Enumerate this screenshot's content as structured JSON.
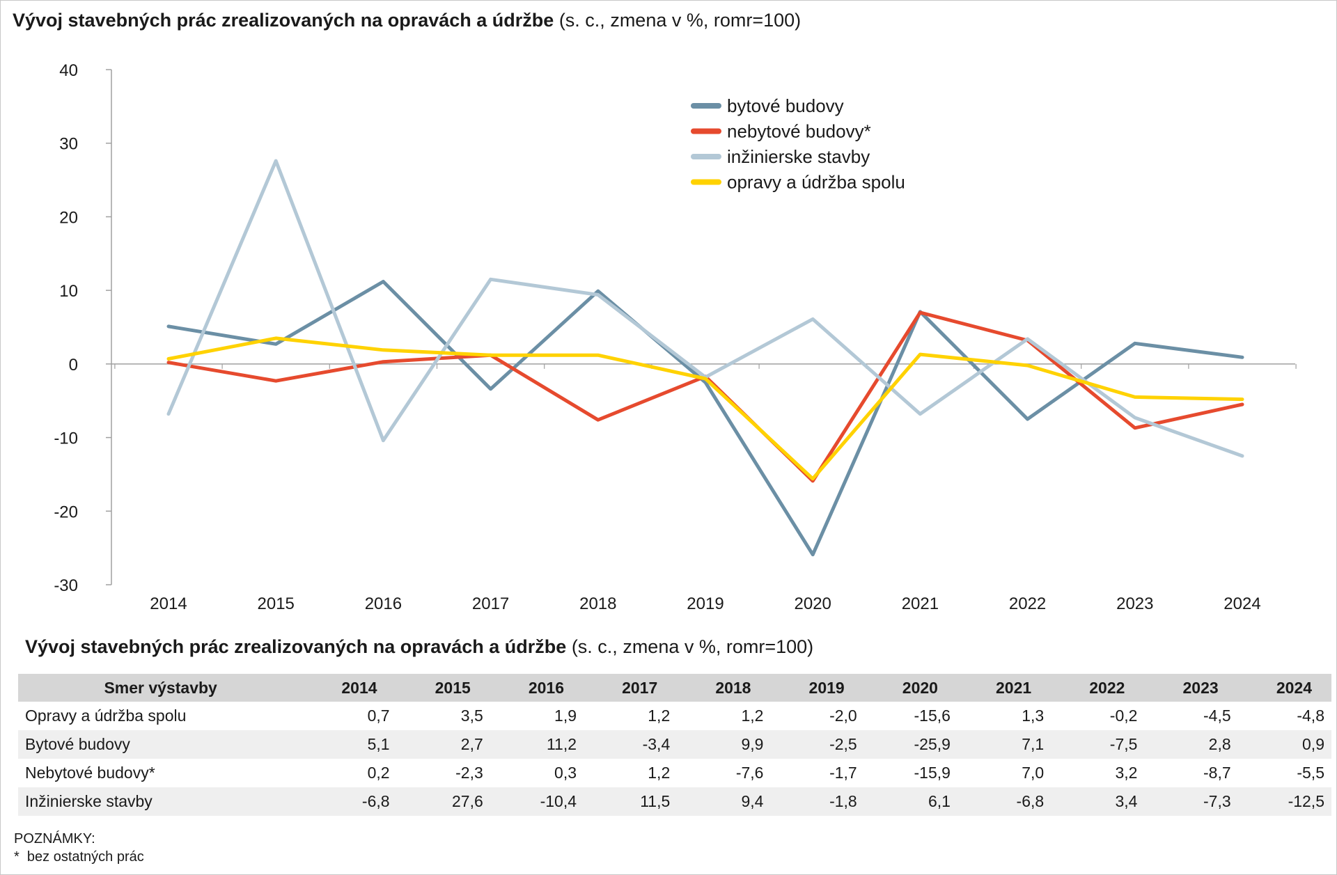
{
  "chart_title_bold": "Vývoj stavebných prác zrealizovaných na opravách a údržbe",
  "chart_title_rest": " (s. c., zmena v %, romr=100)",
  "table_title_bold": "Vývoj stavebných prác zrealizovaných na opravách a údržbe",
  "table_title_rest": " (s. c., zmena v %, romr=100)",
  "chart_data": {
    "type": "line",
    "title": "Vývoj stavebných prác zrealizovaných na opravách a údržbe (s. c., zmena v %, romr=100)",
    "xlabel": "",
    "ylabel": "",
    "categories": [
      "2014",
      "2015",
      "2016",
      "2017",
      "2018",
      "2019",
      "2020",
      "2021",
      "2022",
      "2023",
      "2024"
    ],
    "ylim": [
      -30,
      40
    ],
    "yticks": [
      40,
      30,
      20,
      10,
      0,
      -10,
      -20,
      -30
    ],
    "legend_position": "top-right",
    "series": [
      {
        "name": "bytové budovy",
        "color": "#6b8fa5",
        "values": [
          5.1,
          2.7,
          11.2,
          -3.4,
          9.9,
          -2.5,
          -25.9,
          7.1,
          -7.5,
          2.8,
          0.9
        ]
      },
      {
        "name": "nebytové budovy*",
        "color": "#e64a2e",
        "values": [
          0.2,
          -2.3,
          0.3,
          1.2,
          -7.6,
          -1.7,
          -15.9,
          7.0,
          3.2,
          -8.7,
          -5.5
        ]
      },
      {
        "name": "inžinierske stavby",
        "color": "#b3c8d6",
        "values": [
          -6.8,
          27.6,
          -10.4,
          11.5,
          9.4,
          -1.8,
          6.1,
          -6.8,
          3.4,
          -7.3,
          -12.5
        ]
      },
      {
        "name": "opravy a údržba spolu",
        "color": "#ffd200",
        "values": [
          0.7,
          3.5,
          1.9,
          1.2,
          1.2,
          -2.0,
          -15.6,
          1.3,
          -0.2,
          -4.5,
          -4.8
        ]
      }
    ]
  },
  "table": {
    "header": [
      "Smer výstavby",
      "2014",
      "2015",
      "2016",
      "2017",
      "2018",
      "2019",
      "2020",
      "2021",
      "2022",
      "2023",
      "2024"
    ],
    "rows": [
      [
        "Opravy a údržba spolu",
        "0,7",
        "3,5",
        "1,9",
        "1,2",
        "1,2",
        "-2,0",
        "-15,6",
        "1,3",
        "-0,2",
        "-4,5",
        "-4,8"
      ],
      [
        "Bytové budovy",
        "5,1",
        "2,7",
        "11,2",
        "-3,4",
        "9,9",
        "-2,5",
        "-25,9",
        "7,1",
        "-7,5",
        "2,8",
        "0,9"
      ],
      [
        "Nebytové budovy*",
        "0,2",
        "-2,3",
        "0,3",
        "1,2",
        "-7,6",
        "-1,7",
        "-15,9",
        "7,0",
        "3,2",
        "-8,7",
        "-5,5"
      ],
      [
        "Inžinierske stavby",
        "-6,8",
        "27,6",
        "-10,4",
        "11,5",
        "9,4",
        "-1,8",
        "6,1",
        "-6,8",
        "3,4",
        "-7,3",
        "-12,5"
      ]
    ]
  },
  "notes": {
    "heading": "POZNÁMKY:",
    "item": "*  bez ostatných prác"
  }
}
